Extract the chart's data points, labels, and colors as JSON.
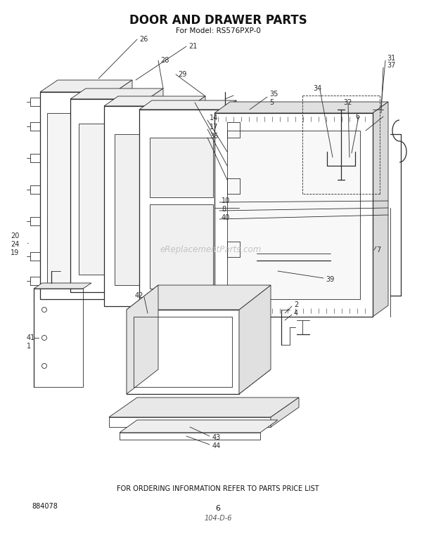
{
  "title": "DOOR AND DRAWER PARTS",
  "subtitle": "For Model: RS576PXP-0",
  "footer_text": "FOR ORDERING INFORMATION REFER TO PARTS PRICE LIST",
  "doc_number": "884078",
  "page_number": "6",
  "handwritten": "104-D-6",
  "watermark": "eReplacementParts.com",
  "bg_color": "#ffffff",
  "line_color": "#2a2a2a",
  "label_color": "#1a1a1a"
}
